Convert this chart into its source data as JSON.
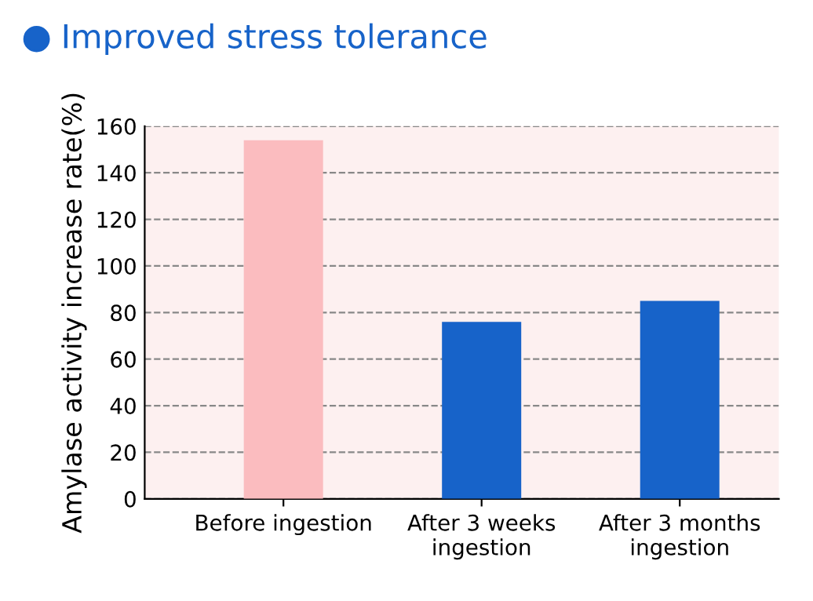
{
  "chart_data": {
    "type": "bar",
    "title": "Improved stress tolerance",
    "ylabel": "Amylase activity increase rate(%)",
    "categories": [
      "Before ingestion",
      "After 3 weeks\ningestion",
      "After 3 months\ningestion"
    ],
    "values": [
      154,
      76,
      85
    ],
    "colors": [
      "#fbbcbf",
      "#1763c9",
      "#1763c9"
    ],
    "ylim": [
      0,
      160
    ],
    "yticks": [
      0,
      20,
      40,
      60,
      80,
      100,
      120,
      140,
      160
    ],
    "grid": "y",
    "line_style": "dashed"
  }
}
